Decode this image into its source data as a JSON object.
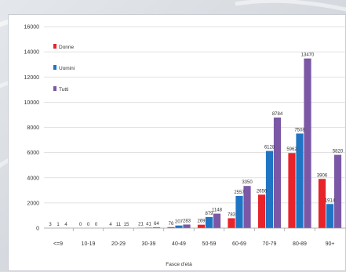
{
  "chart_data": {
    "type": "bar",
    "xlabel": "Fasce d'età",
    "ylabel": "",
    "ylim": [
      0,
      16000
    ],
    "yticks": [
      0,
      2000,
      4000,
      6000,
      8000,
      10000,
      12000,
      14000,
      16000
    ],
    "grid": true,
    "legend_position": "top-left",
    "categories": [
      "<=9",
      "10-19",
      "20-29",
      "30-39",
      "40-49",
      "50-59",
      "60-69",
      "70-79",
      "80-89",
      "90+"
    ],
    "series": [
      {
        "name": "Donne",
        "color": "#e8232a",
        "values": [
          3,
          0,
          4,
          21,
          76,
          269,
          783,
          2656,
          5962,
          3906
        ]
      },
      {
        "name": "Uomini",
        "color": "#1f74c4",
        "values": [
          1,
          0,
          11,
          41,
          207,
          879,
          2557,
          6128,
          7508,
          1914
        ]
      },
      {
        "name": "Tutti",
        "color": "#7b58a6",
        "values": [
          4,
          0,
          15,
          64,
          283,
          1148,
          3350,
          8784,
          13470,
          5820
        ]
      }
    ],
    "value_labels": [
      [
        "3",
        "0",
        "4",
        "21",
        "76",
        "269",
        "783",
        "2656",
        "5962",
        "3906"
      ],
      [
        "1",
        "0",
        "11",
        "41",
        "207",
        "879",
        "2557",
        "6128",
        "7508",
        "1914"
      ],
      [
        "4",
        "0",
        "15",
        "64",
        "283",
        "1148",
        "3350",
        "8784",
        "13470",
        "5820"
      ]
    ]
  }
}
